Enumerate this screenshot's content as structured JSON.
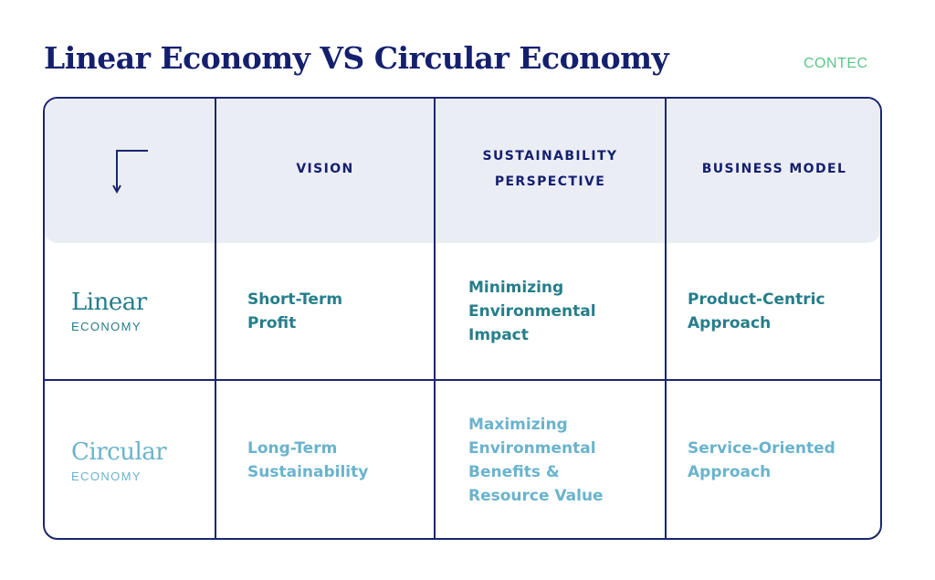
{
  "title": "Linear Economy VS Circular Economy",
  "brand": "CONTEC",
  "colors": {
    "navy": "#1b2670",
    "header_bg": "#ebedf5",
    "linear": "#267e8a",
    "circular": "#6ab3cd",
    "brand": "#5bc68a"
  },
  "corner_icon": "corner-down-arrow-icon",
  "columns": [
    "VISION",
    "SUSTAINABILITY\nPERSPECTIVE",
    "BUSINESS MODEL"
  ],
  "rows": [
    {
      "label": "Linear",
      "sublabel": "ECONOMY",
      "cells": [
        "Short-Term\nProfit",
        "Minimizing\nEnvironmental\nImpact",
        "Product-Centric\nApproach"
      ]
    },
    {
      "label": "Circular",
      "sublabel": "ECONOMY",
      "cells": [
        "Long-Term\nSustainability",
        "Maximizing\nEnvironmental\nBenefits &\nResource Value",
        "Service-Oriented\nApproach"
      ]
    }
  ]
}
